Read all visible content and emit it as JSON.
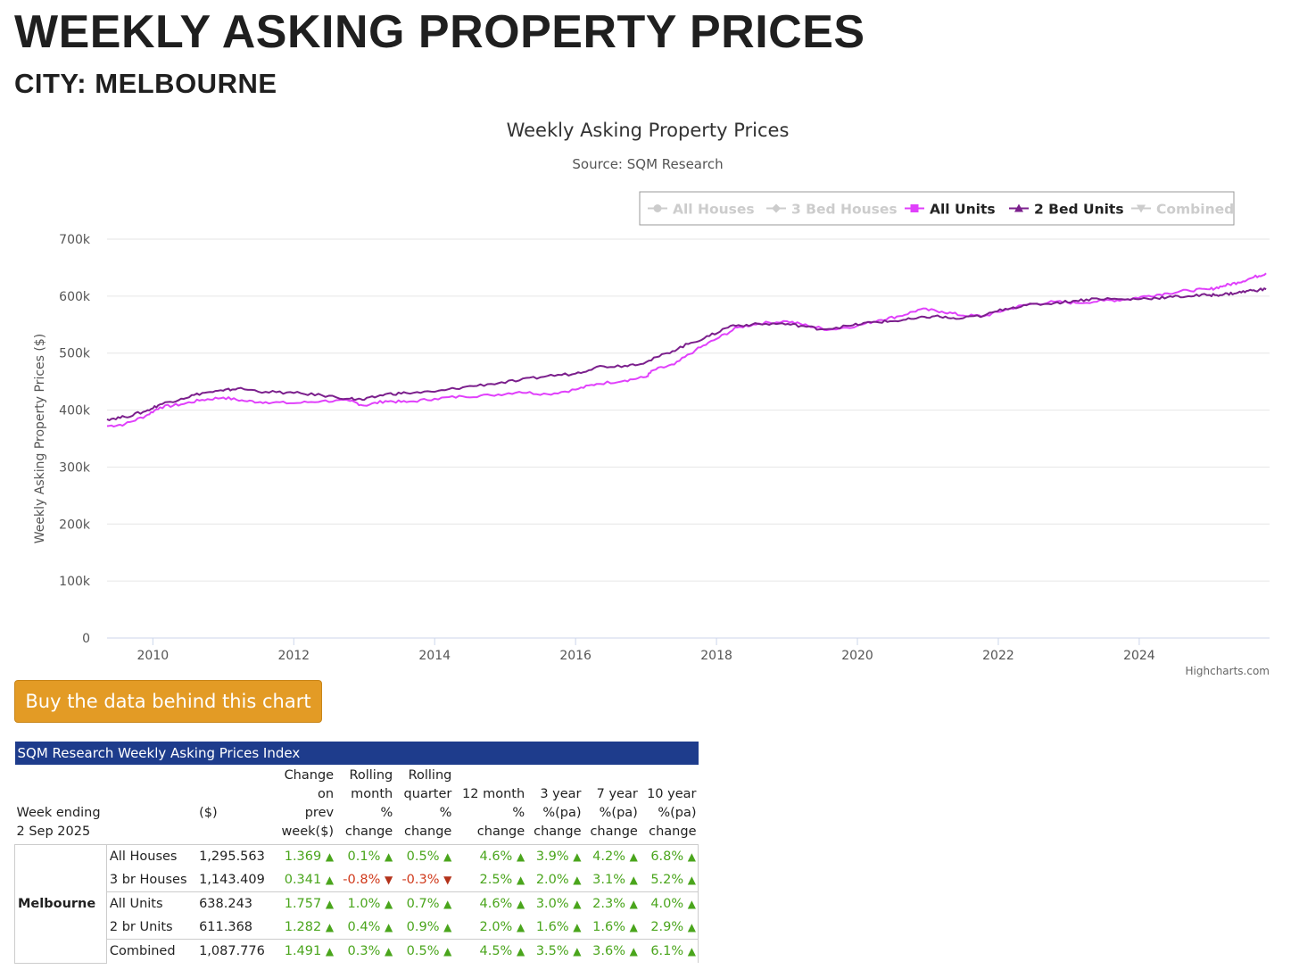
{
  "header": {
    "title": "WEEKLY ASKING PROPERTY PRICES",
    "city": "CITY: MELBOURNE"
  },
  "chart_data": {
    "type": "line",
    "title": "Weekly Asking Property Prices",
    "subtitle": "Source: SQM Research",
    "xlabel": "",
    "ylabel": "Weekly Asking Property Prices ($)",
    "xlim": [
      2009.35,
      2025.85
    ],
    "ylim": [
      0,
      700000
    ],
    "y_ticks": [
      0,
      100000,
      200000,
      300000,
      400000,
      500000,
      600000,
      700000
    ],
    "y_tick_labels": [
      "0",
      "100k",
      "200k",
      "300k",
      "400k",
      "500k",
      "600k",
      "700k"
    ],
    "x_ticks": [
      2010,
      2012,
      2014,
      2016,
      2018,
      2020,
      2022,
      2024
    ],
    "x_tick_labels": [
      "2010",
      "2012",
      "2014",
      "2016",
      "2018",
      "2020",
      "2022",
      "2024"
    ],
    "grid": true,
    "credits": "Highcharts.com",
    "legend_position": "top-right",
    "legend": [
      {
        "name": "All Houses",
        "visible": false,
        "color": "#cccccc",
        "marker": "circle"
      },
      {
        "name": "3 Bed Houses",
        "visible": false,
        "color": "#cccccc",
        "marker": "diamond"
      },
      {
        "name": "All Units",
        "visible": true,
        "color": "#e040fb",
        "marker": "square"
      },
      {
        "name": "2 Bed Units",
        "visible": true,
        "color": "#7b1f8c",
        "marker": "triangle"
      },
      {
        "name": "Combined",
        "visible": false,
        "color": "#cccccc",
        "marker": "triangle-down"
      }
    ],
    "series": [
      {
        "name": "All Units",
        "color": "#e040fb",
        "x": [
          2009.35,
          2009.6,
          2009.9,
          2010.1,
          2010.4,
          2010.7,
          2011.0,
          2011.3,
          2011.6,
          2012.0,
          2012.4,
          2012.8,
          2013.0,
          2013.3,
          2013.6,
          2014.0,
          2014.4,
          2014.8,
          2015.2,
          2015.6,
          2016.0,
          2016.3,
          2016.7,
          2017.0,
          2017.1,
          2017.4,
          2017.7,
          2018.0,
          2018.3,
          2018.6,
          2019.0,
          2019.3,
          2019.6,
          2020.0,
          2020.3,
          2020.6,
          2020.9,
          2021.2,
          2021.5,
          2021.8,
          2022.1,
          2022.4,
          2022.8,
          2023.1,
          2023.5,
          2023.8,
          2024.1,
          2024.4,
          2024.7,
          2025.0,
          2025.2,
          2025.4,
          2025.6,
          2025.8
        ],
        "values": [
          372000,
          375000,
          390000,
          405000,
          410000,
          418000,
          422000,
          416000,
          414000,
          412000,
          416000,
          416000,
          408000,
          416000,
          414000,
          420000,
          424000,
          426000,
          432000,
          428000,
          436000,
          446000,
          452000,
          458000,
          470000,
          480000,
          505000,
          525000,
          545000,
          552000,
          556000,
          548000,
          541000,
          548000,
          558000,
          565000,
          577000,
          573000,
          566000,
          565000,
          576000,
          585000,
          590000,
          588000,
          592000,
          594000,
          600000,
          605000,
          610000,
          612000,
          618000,
          624000,
          632000,
          640000
        ]
      },
      {
        "name": "2 Bed Units",
        "color": "#7b1f8c",
        "x": [
          2009.35,
          2009.6,
          2009.9,
          2010.1,
          2010.4,
          2010.7,
          2011.0,
          2011.2,
          2011.6,
          2012.0,
          2012.4,
          2012.8,
          2013.0,
          2013.3,
          2013.6,
          2014.0,
          2014.4,
          2014.8,
          2015.2,
          2015.6,
          2016.0,
          2016.3,
          2016.7,
          2017.0,
          2017.3,
          2017.6,
          2017.9,
          2018.2,
          2018.5,
          2018.9,
          2019.2,
          2019.5,
          2019.9,
          2020.2,
          2020.5,
          2020.8,
          2021.1,
          2021.4,
          2021.8,
          2022.1,
          2022.4,
          2022.8,
          2023.1,
          2023.4,
          2023.8,
          2024.1,
          2024.4,
          2024.7,
          2025.0,
          2025.2,
          2025.4,
          2025.6,
          2025.8
        ],
        "values": [
          384000,
          388000,
          398000,
          410000,
          420000,
          430000,
          434000,
          438000,
          432000,
          430000,
          426000,
          420000,
          418000,
          428000,
          430000,
          432000,
          440000,
          446000,
          452000,
          460000,
          464000,
          476000,
          478000,
          484000,
          500000,
          516000,
          530000,
          548000,
          550000,
          552000,
          548000,
          542000,
          548000,
          554000,
          556000,
          560000,
          565000,
          560000,
          566000,
          578000,
          584000,
          588000,
          592000,
          596000,
          594000,
          596000,
          598000,
          600000,
          602000,
          603000,
          606000,
          610000,
          612000
        ]
      }
    ]
  },
  "buy_button": {
    "label": "Buy the data behind this chart"
  },
  "table": {
    "title": "SQM Research Weekly Asking Prices Index",
    "week_label": "Week ending",
    "week_date": "2 Sep 2025",
    "unit_label": "($)",
    "headers": {
      "change_prev": [
        "Change",
        "on",
        "prev",
        "week($)"
      ],
      "rolling_month": [
        "Rolling",
        "month",
        "%",
        "change"
      ],
      "rolling_quarter": [
        "Rolling",
        "quarter",
        "%",
        "change"
      ],
      "twelve_month": [
        "12 month",
        "%",
        "change"
      ],
      "three_year": [
        "3 year",
        "%(pa)",
        "change"
      ],
      "seven_year": [
        "7 year",
        "%(pa)",
        "change"
      ],
      "ten_year": [
        "10 year",
        "%(pa)",
        "change"
      ]
    },
    "city": "Melbourne",
    "rows": [
      {
        "label": "All Houses",
        "value": "1,295.563",
        "c": [
          "1.369",
          "0.1%",
          "0.5%",
          "4.6%",
          "3.9%",
          "4.2%",
          "6.8%"
        ],
        "dir": [
          "up",
          "up",
          "up",
          "up",
          "up",
          "up",
          "up"
        ]
      },
      {
        "label": "3 br Houses",
        "value": "1,143.409",
        "c": [
          "0.341",
          "-0.8%",
          "-0.3%",
          "2.5%",
          "2.0%",
          "3.1%",
          "5.2%"
        ],
        "dir": [
          "up",
          "down",
          "down",
          "up",
          "up",
          "up",
          "up"
        ]
      },
      {
        "label": "All Units",
        "value": "638.243",
        "c": [
          "1.757",
          "1.0%",
          "0.7%",
          "4.6%",
          "3.0%",
          "2.3%",
          "4.0%"
        ],
        "dir": [
          "up",
          "up",
          "up",
          "up",
          "up",
          "up",
          "up"
        ]
      },
      {
        "label": "2 br Units",
        "value": "611.368",
        "c": [
          "1.282",
          "0.4%",
          "0.9%",
          "2.0%",
          "1.6%",
          "1.6%",
          "2.9%"
        ],
        "dir": [
          "up",
          "up",
          "up",
          "up",
          "up",
          "up",
          "up"
        ]
      },
      {
        "label": "Combined",
        "value": "1,087.776",
        "c": [
          "1.491",
          "0.3%",
          "0.5%",
          "4.5%",
          "3.5%",
          "3.6%",
          "6.1%"
        ],
        "dir": [
          "up",
          "up",
          "up",
          "up",
          "up",
          "up",
          "up"
        ]
      }
    ]
  }
}
